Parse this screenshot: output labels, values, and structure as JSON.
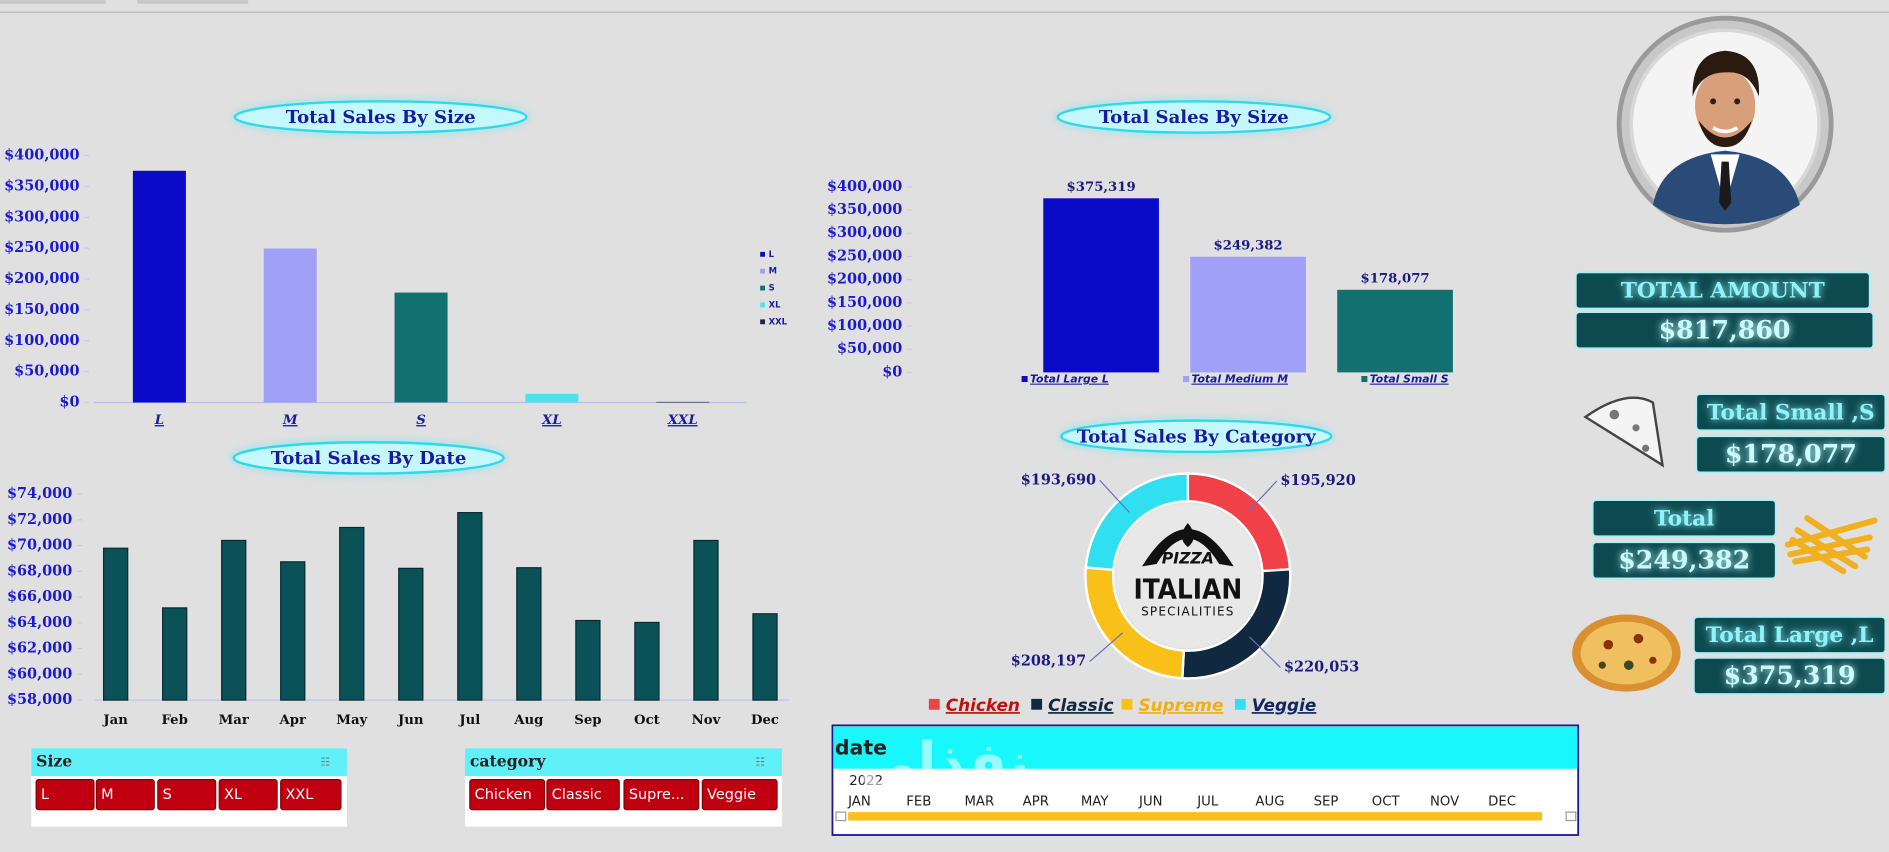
{
  "chart_data": [
    {
      "type": "bar",
      "title": "Total Sales By Size",
      "categories": [
        "L",
        "M",
        "S",
        "XL",
        "XXL"
      ],
      "values": [
        375319,
        249382,
        178077,
        14076,
        1007
      ],
      "colors": [
        "#0a0ac8",
        "#a0a0f8",
        "#127070",
        "#50e0f0",
        "#1a2a40"
      ],
      "ylim": [
        0,
        400000
      ],
      "yticks": [
        {
          "value": 0,
          "label": "$0"
        },
        {
          "value": 50000,
          "label": "$50,000"
        },
        {
          "value": 100000,
          "label": "$100,000"
        },
        {
          "value": 150000,
          "label": "$150,000"
        },
        {
          "value": 200000,
          "label": "$200,000"
        },
        {
          "value": 250000,
          "label": "$250,000"
        },
        {
          "value": 300000,
          "label": "$300,000"
        },
        {
          "value": 350000,
          "label": "$350,000"
        },
        {
          "value": 400000,
          "label": "$400,000"
        }
      ],
      "legend": "right"
    },
    {
      "type": "bar",
      "title": "Total Sales By Size",
      "categories": [
        "Total Large L",
        "Total Medium M",
        "Total Small S"
      ],
      "values": [
        375319,
        249382,
        178077
      ],
      "value_labels": [
        "$375,319",
        "$249,382",
        "$178,077"
      ],
      "colors": [
        "#0a0ac8",
        "#a0a0f8",
        "#127070"
      ],
      "ylim": [
        0,
        400000
      ],
      "yticks": [
        {
          "value": 0,
          "label": "$0"
        },
        {
          "value": 50000,
          "label": "$50,000"
        },
        {
          "value": 100000,
          "label": "$100,000"
        },
        {
          "value": 150000,
          "label": "$150,000"
        },
        {
          "value": 200000,
          "label": "$200,000"
        },
        {
          "value": 250000,
          "label": "$250,000"
        },
        {
          "value": 300000,
          "label": "$300,000"
        },
        {
          "value": 350000,
          "label": "$350,000"
        },
        {
          "value": 400000,
          "label": "$400,000"
        }
      ],
      "legend": "bottom"
    },
    {
      "type": "bar",
      "title": "Total Sales By Date",
      "categories": [
        "Jan",
        "Feb",
        "Mar",
        "Apr",
        "May",
        "Jun",
        "Jul",
        "Aug",
        "Sep",
        "Oct",
        "Nov",
        "Dec"
      ],
      "values": [
        69793,
        65160,
        70397,
        68737,
        71403,
        68230,
        72558,
        68278,
        64180,
        64028,
        70395,
        64701
      ],
      "color": "#0b5258",
      "ylim": [
        58000,
        74000
      ],
      "yticks": [
        {
          "value": 58000,
          "label": "$58,000"
        },
        {
          "value": 60000,
          "label": "$60,000"
        },
        {
          "value": 62000,
          "label": "$62,000"
        },
        {
          "value": 64000,
          "label": "$64,000"
        },
        {
          "value": 66000,
          "label": "$66,000"
        },
        {
          "value": 68000,
          "label": "$68,000"
        },
        {
          "value": 70000,
          "label": "$70,000"
        },
        {
          "value": 72000,
          "label": "$72,000"
        },
        {
          "value": 74000,
          "label": "$74,000"
        }
      ]
    },
    {
      "type": "pie",
      "title": "Total Sales By Category",
      "categories": [
        "Chicken",
        "Classic",
        "Supreme",
        "Veggie"
      ],
      "values": [
        195920,
        220053,
        208197,
        193690
      ],
      "value_labels": [
        "$195,920",
        "$220,053",
        "$208,197",
        "$193,690"
      ],
      "colors": [
        "#f04048",
        "#102840",
        "#f8c018",
        "#30e0f0"
      ],
      "legend": "bottom",
      "center_text": [
        "PIZZA",
        "ITALIAN",
        "SPECIALITIES"
      ]
    }
  ],
  "kpis": [
    {
      "label": "TOTAL AMOUNT",
      "value": "$817,860"
    },
    {
      "label": "Total Small ,S",
      "value": "$178,077"
    },
    {
      "label": "Total",
      "value": "$249,382"
    },
    {
      "label": "Total Large ,L",
      "value": "$375,319"
    }
  ],
  "slicers": [
    {
      "title": "Size",
      "items": [
        "L",
        "M",
        "S",
        "XL",
        "XXL"
      ]
    },
    {
      "title": "category",
      "items": [
        "Chicken",
        "Classic",
        "Supre...",
        "Veggie"
      ]
    }
  ],
  "timeline": {
    "title": "date",
    "year": "2022",
    "months": [
      "JAN",
      "FEB",
      "MAR",
      "APR",
      "MAY",
      "JUN",
      "JUL",
      "AUG",
      "SEP",
      "OCT",
      "NOV",
      "DEC"
    ]
  },
  "watermark": "نفذلي"
}
